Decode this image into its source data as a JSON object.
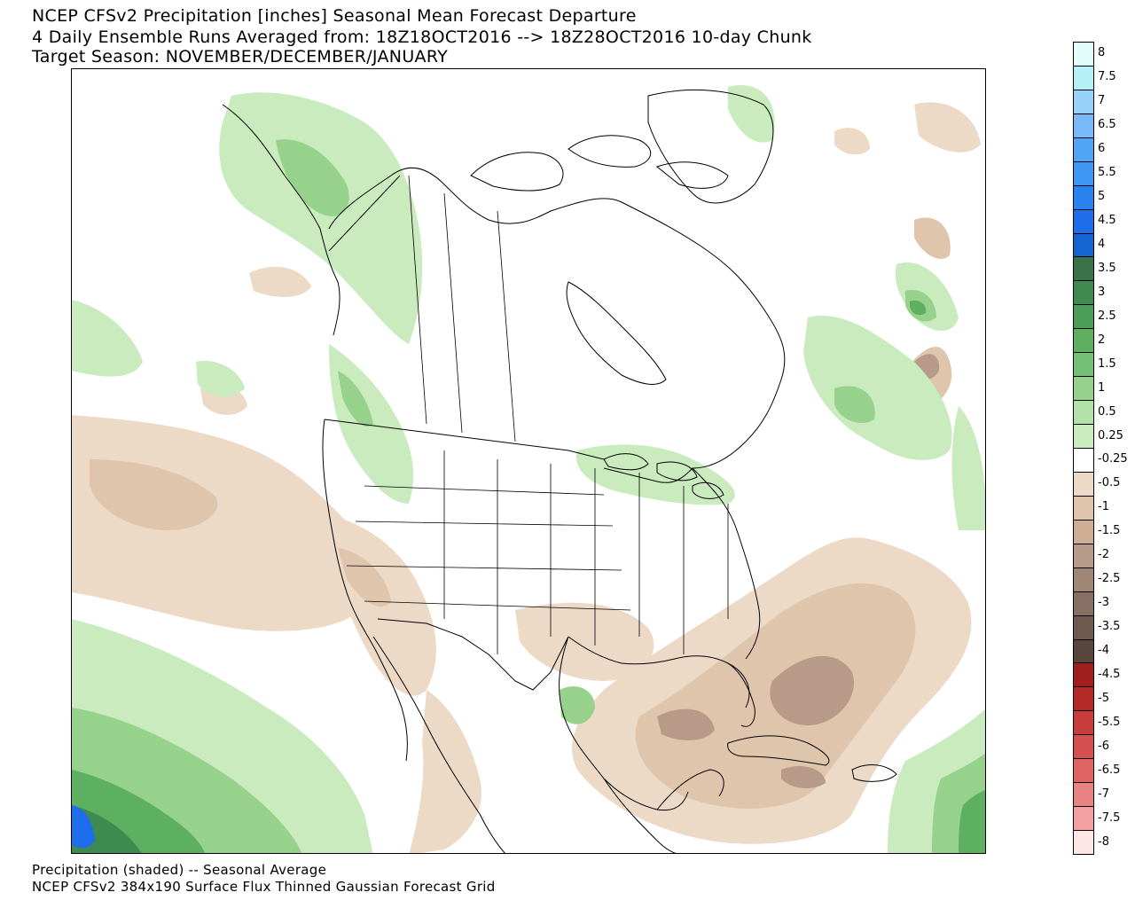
{
  "title": {
    "line1": "NCEP CFSv2 Precipitation [inches] Seasonal Mean Forecast Departure",
    "line2": "4 Daily Ensemble Runs Averaged from: 18Z18OCT2016 --> 18Z28OCT2016 10-day Chunk",
    "line3": "Target Season: NOVEMBER/DECEMBER/JANUARY"
  },
  "footer": {
    "line1": "Precipitation (shaded) -- Seasonal Average",
    "line2": "NCEP CFSv2 384x190 Surface Flux Thinned Gaussian Forecast Grid"
  },
  "colorbar": {
    "units": "inches",
    "bins": [
      {
        "label": "8",
        "color": "#e2fbfb"
      },
      {
        "label": "7.5",
        "color": "#b4f0f8"
      },
      {
        "label": "7",
        "color": "#96d2fa"
      },
      {
        "label": "6.5",
        "color": "#78b9fa"
      },
      {
        "label": "6",
        "color": "#50a5f5"
      },
      {
        "label": "5.5",
        "color": "#3c97f5"
      },
      {
        "label": "5",
        "color": "#2882f0"
      },
      {
        "label": "4.5",
        "color": "#1e6eeb"
      },
      {
        "label": "4",
        "color": "#1464d2"
      },
      {
        "label": "3.5",
        "color": "#3a7348"
      },
      {
        "label": "3",
        "color": "#3f8a4e"
      },
      {
        "label": "2.5",
        "color": "#4a9e58"
      },
      {
        "label": "2",
        "color": "#5cb060"
      },
      {
        "label": "1.5",
        "color": "#74c276"
      },
      {
        "label": "1",
        "color": "#96d28c"
      },
      {
        "label": "0.5",
        "color": "#b4e1a8"
      },
      {
        "label": "0.25",
        "color": "#c9ebbe"
      },
      {
        "label": "-0.25",
        "color": "#ffffff"
      },
      {
        "label": "-0.5",
        "color": "#ecd9c6"
      },
      {
        "label": "-1",
        "color": "#e0c5ad"
      },
      {
        "label": "-1.5",
        "color": "#cfae96"
      },
      {
        "label": "-2",
        "color": "#b89a88"
      },
      {
        "label": "-2.5",
        "color": "#a08677"
      },
      {
        "label": "-3",
        "color": "#877063"
      },
      {
        "label": "-3.5",
        "color": "#6e5a4e"
      },
      {
        "label": "-4",
        "color": "#58463c"
      },
      {
        "label": "-4.5",
        "color": "#a01e1e"
      },
      {
        "label": "-5",
        "color": "#b42828"
      },
      {
        "label": "-5.5",
        "color": "#c83c3c"
      },
      {
        "label": "-6",
        "color": "#d75050"
      },
      {
        "label": "-6.5",
        "color": "#e16464"
      },
      {
        "label": "-7",
        "color": "#eb8282"
      },
      {
        "label": "-7.5",
        "color": "#f5a0a0"
      },
      {
        "label": "-8",
        "color": "#ffe6e6"
      }
    ]
  },
  "map": {
    "region": "North America",
    "colors": {
      "green_light": "#c9ebbe",
      "green_mid": "#96d28c",
      "green_dark": "#5cb060",
      "green_darker": "#3f8a4e",
      "blue": "#1e6eeb",
      "tan_light": "#ecd9c6",
      "tan_mid": "#e0c5ad",
      "brown": "#b89a88",
      "brown_dark": "#a08677"
    }
  }
}
